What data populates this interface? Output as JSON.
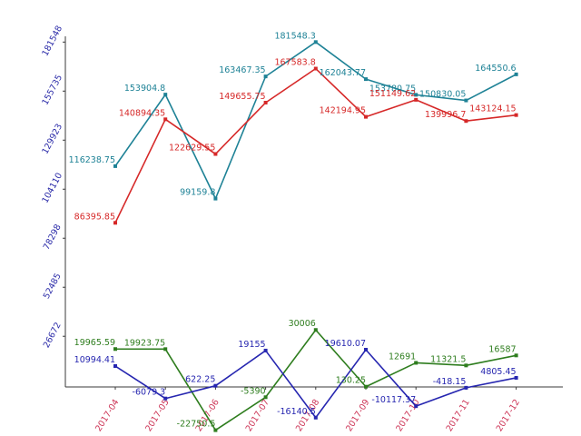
{
  "chart_data": {
    "type": "line",
    "title": "",
    "xlabel": "",
    "ylabel": "",
    "categories": [
      "2017-04",
      "2017-05",
      "2017-06",
      "2017-07",
      "2017-08",
      "2017-09",
      "2017-10",
      "2017-11",
      "2017-12"
    ],
    "y_ticks": [
      26672,
      52485,
      78298,
      104110,
      129923,
      155735,
      181548
    ],
    "ylim": [
      0,
      181548
    ],
    "grid": false,
    "legend": "none",
    "series": [
      {
        "color": "#1e8296",
        "values": [
          116238.75,
          153904.8,
          99159.8,
          163467.35,
          181548.3,
          162043.77,
          153780.75,
          150830.05,
          164550.6
        ],
        "labels": [
          "116238.75",
          "153904.8",
          "99159.8",
          "163467.35",
          "181548.3",
          "162043.77",
          "153780.75",
          "150830.05",
          "164550.6"
        ]
      },
      {
        "color": "#d62828",
        "values": [
          86395.85,
          140894.35,
          122629.55,
          149655.75,
          167583.8,
          142194.95,
          151149.62,
          139996.7,
          143124.15
        ],
        "labels": [
          "86395.85",
          "140894.35",
          "122629.55",
          "149655.75",
          "167583.8",
          "142194.95",
          "151149.62",
          "139996.7",
          "143124.15"
        ]
      },
      {
        "color": "#2e7d1e",
        "values": [
          19965.59,
          19923.75,
          -22750.5,
          -5390,
          30006,
          130.25,
          12691,
          11321.5,
          16587
        ],
        "labels": [
          "19965.59",
          "19923.75",
          "-22750.5",
          "-5390",
          "30006",
          "130.25",
          "12691",
          "11321.5",
          "16587"
        ]
      },
      {
        "color": "#2626b0",
        "values": [
          10994.41,
          -6079.3,
          622.25,
          19155,
          -16140.5,
          19610.07,
          -10117.37,
          -418.15,
          4805.45
        ],
        "labels": [
          "10994.41",
          "-6079.3",
          "622.25",
          "19155",
          "-16140.5",
          "19610.07",
          "-10117.37",
          "-418.15",
          "4805.45"
        ]
      }
    ],
    "colors": {
      "axis": "#3a3a3a",
      "ytick": "#2a2aa8",
      "xtick": "#cc3355"
    }
  }
}
